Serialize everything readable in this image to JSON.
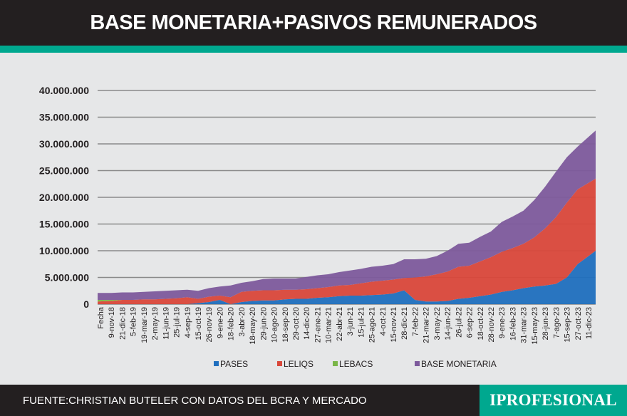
{
  "header": {
    "title": "BASE MONETARIA+PASIVOS REMUNERADOS"
  },
  "footer": {
    "source": "FUENTE:CHRISTIAN BUTELER CON DATOS DEL BCRA Y MERCADO",
    "logo": "IPROFESIONAL"
  },
  "colors": {
    "header_bg": "#231f20",
    "accent": "#00a88f",
    "background": "#e6e7e8"
  },
  "chart_data": {
    "type": "area",
    "stacked": true,
    "title": "",
    "xlabel": "",
    "ylabel": "",
    "ylim": [
      0,
      40000000
    ],
    "yticks": [
      "0",
      "5.000.000",
      "10.000.000",
      "15.000.000",
      "20.000.000",
      "25.000.000",
      "30.000.000",
      "35.000.000",
      "40.000.000"
    ],
    "grid": true,
    "legend_position": "bottom",
    "categories": [
      "Fecha",
      "9-nov-18",
      "21-dic-18",
      "5-feb-19",
      "19-mar-19",
      "2-may-19",
      "11-jun-19",
      "25-jul-19",
      "4-sep-19",
      "15-oct-19",
      "26-nov-19",
      "9-ene-20",
      "18-feb-20",
      "3-abr-20",
      "18-may-20",
      "29-jun-20",
      "10-ago-20",
      "18-sep-20",
      "29-oct-20",
      "14-dic-20",
      "27-ene-21",
      "10-mar-21",
      "22-abr-21",
      "3-jun-21",
      "15-jul-21",
      "25-ago-21",
      "4-oct-21",
      "15-nov-21",
      "28-dic-21",
      "7-feb-22",
      "21-mar-22",
      "3-may-22",
      "14-jun-22",
      "26-jul-22",
      "6-sep-22",
      "18-oct-22",
      "28-nov-22",
      "9-ene-23",
      "16-feb-23",
      "31-mar-23",
      "15-may-23",
      "28-jun-23",
      "7-ago-23",
      "15-sep-23",
      "27-oct-23",
      "11-dic-23"
    ],
    "series": [
      {
        "name": "PASES",
        "color": "#1f6fbe",
        "values": [
          0,
          0,
          0,
          0,
          0,
          0,
          0,
          0,
          0,
          200000,
          400000,
          800000,
          0,
          400000,
          600000,
          700000,
          700000,
          900000,
          1000000,
          1000000,
          1200000,
          1300000,
          1500000,
          1600000,
          1600000,
          1700000,
          1800000,
          2000000,
          2600000,
          800000,
          500000,
          500000,
          600000,
          1000000,
          1200000,
          1500000,
          1800000,
          2300000,
          2600000,
          3000000,
          3300000,
          3500000,
          3800000,
          5000000,
          7500000,
          10000000
        ]
      },
      {
        "name": "LELIQS",
        "color": "#d9473a",
        "values": [
          500000,
          600000,
          800000,
          800000,
          900000,
          900000,
          1000000,
          1100000,
          1300000,
          800000,
          1000000,
          800000,
          1300000,
          1900000,
          1900000,
          1900000,
          1900000,
          1800000,
          1700000,
          1800000,
          1800000,
          1900000,
          2000000,
          2000000,
          2300000,
          2500000,
          2600000,
          2600000,
          2300000,
          4200000,
          4700000,
          5100000,
          5500000,
          6000000,
          6000000,
          6500000,
          7000000,
          7500000,
          7900000,
          8300000,
          9200000,
          10700000,
          12500000,
          14000000,
          14000000,
          13500000
        ]
      },
      {
        "name": "LEBACS",
        "color": "#7ab648",
        "values": [
          300000,
          200000,
          0,
          0,
          0,
          0,
          0,
          0,
          0,
          0,
          0,
          0,
          0,
          0,
          0,
          0,
          0,
          0,
          0,
          0,
          0,
          0,
          0,
          0,
          0,
          0,
          0,
          0,
          0,
          0,
          0,
          0,
          0,
          0,
          0,
          0,
          0,
          0,
          0,
          0,
          0,
          0,
          0,
          0,
          0,
          0
        ]
      },
      {
        "name": "BASE MONETARIA",
        "color": "#7d5a9c",
        "values": [
          1300000,
          1300000,
          1400000,
          1400000,
          1400000,
          1500000,
          1500000,
          1500000,
          1400000,
          1500000,
          1600000,
          1700000,
          2200000,
          1700000,
          1800000,
          2100000,
          2200000,
          2100000,
          2100000,
          2300000,
          2400000,
          2400000,
          2500000,
          2700000,
          2700000,
          2800000,
          2800000,
          2900000,
          3500000,
          3400000,
          3300000,
          3400000,
          3900000,
          4300000,
          4300000,
          4600000,
          4800000,
          5600000,
          5900000,
          6200000,
          7000000,
          7800000,
          8500000,
          8500000,
          8000000,
          9000000
        ]
      }
    ]
  }
}
